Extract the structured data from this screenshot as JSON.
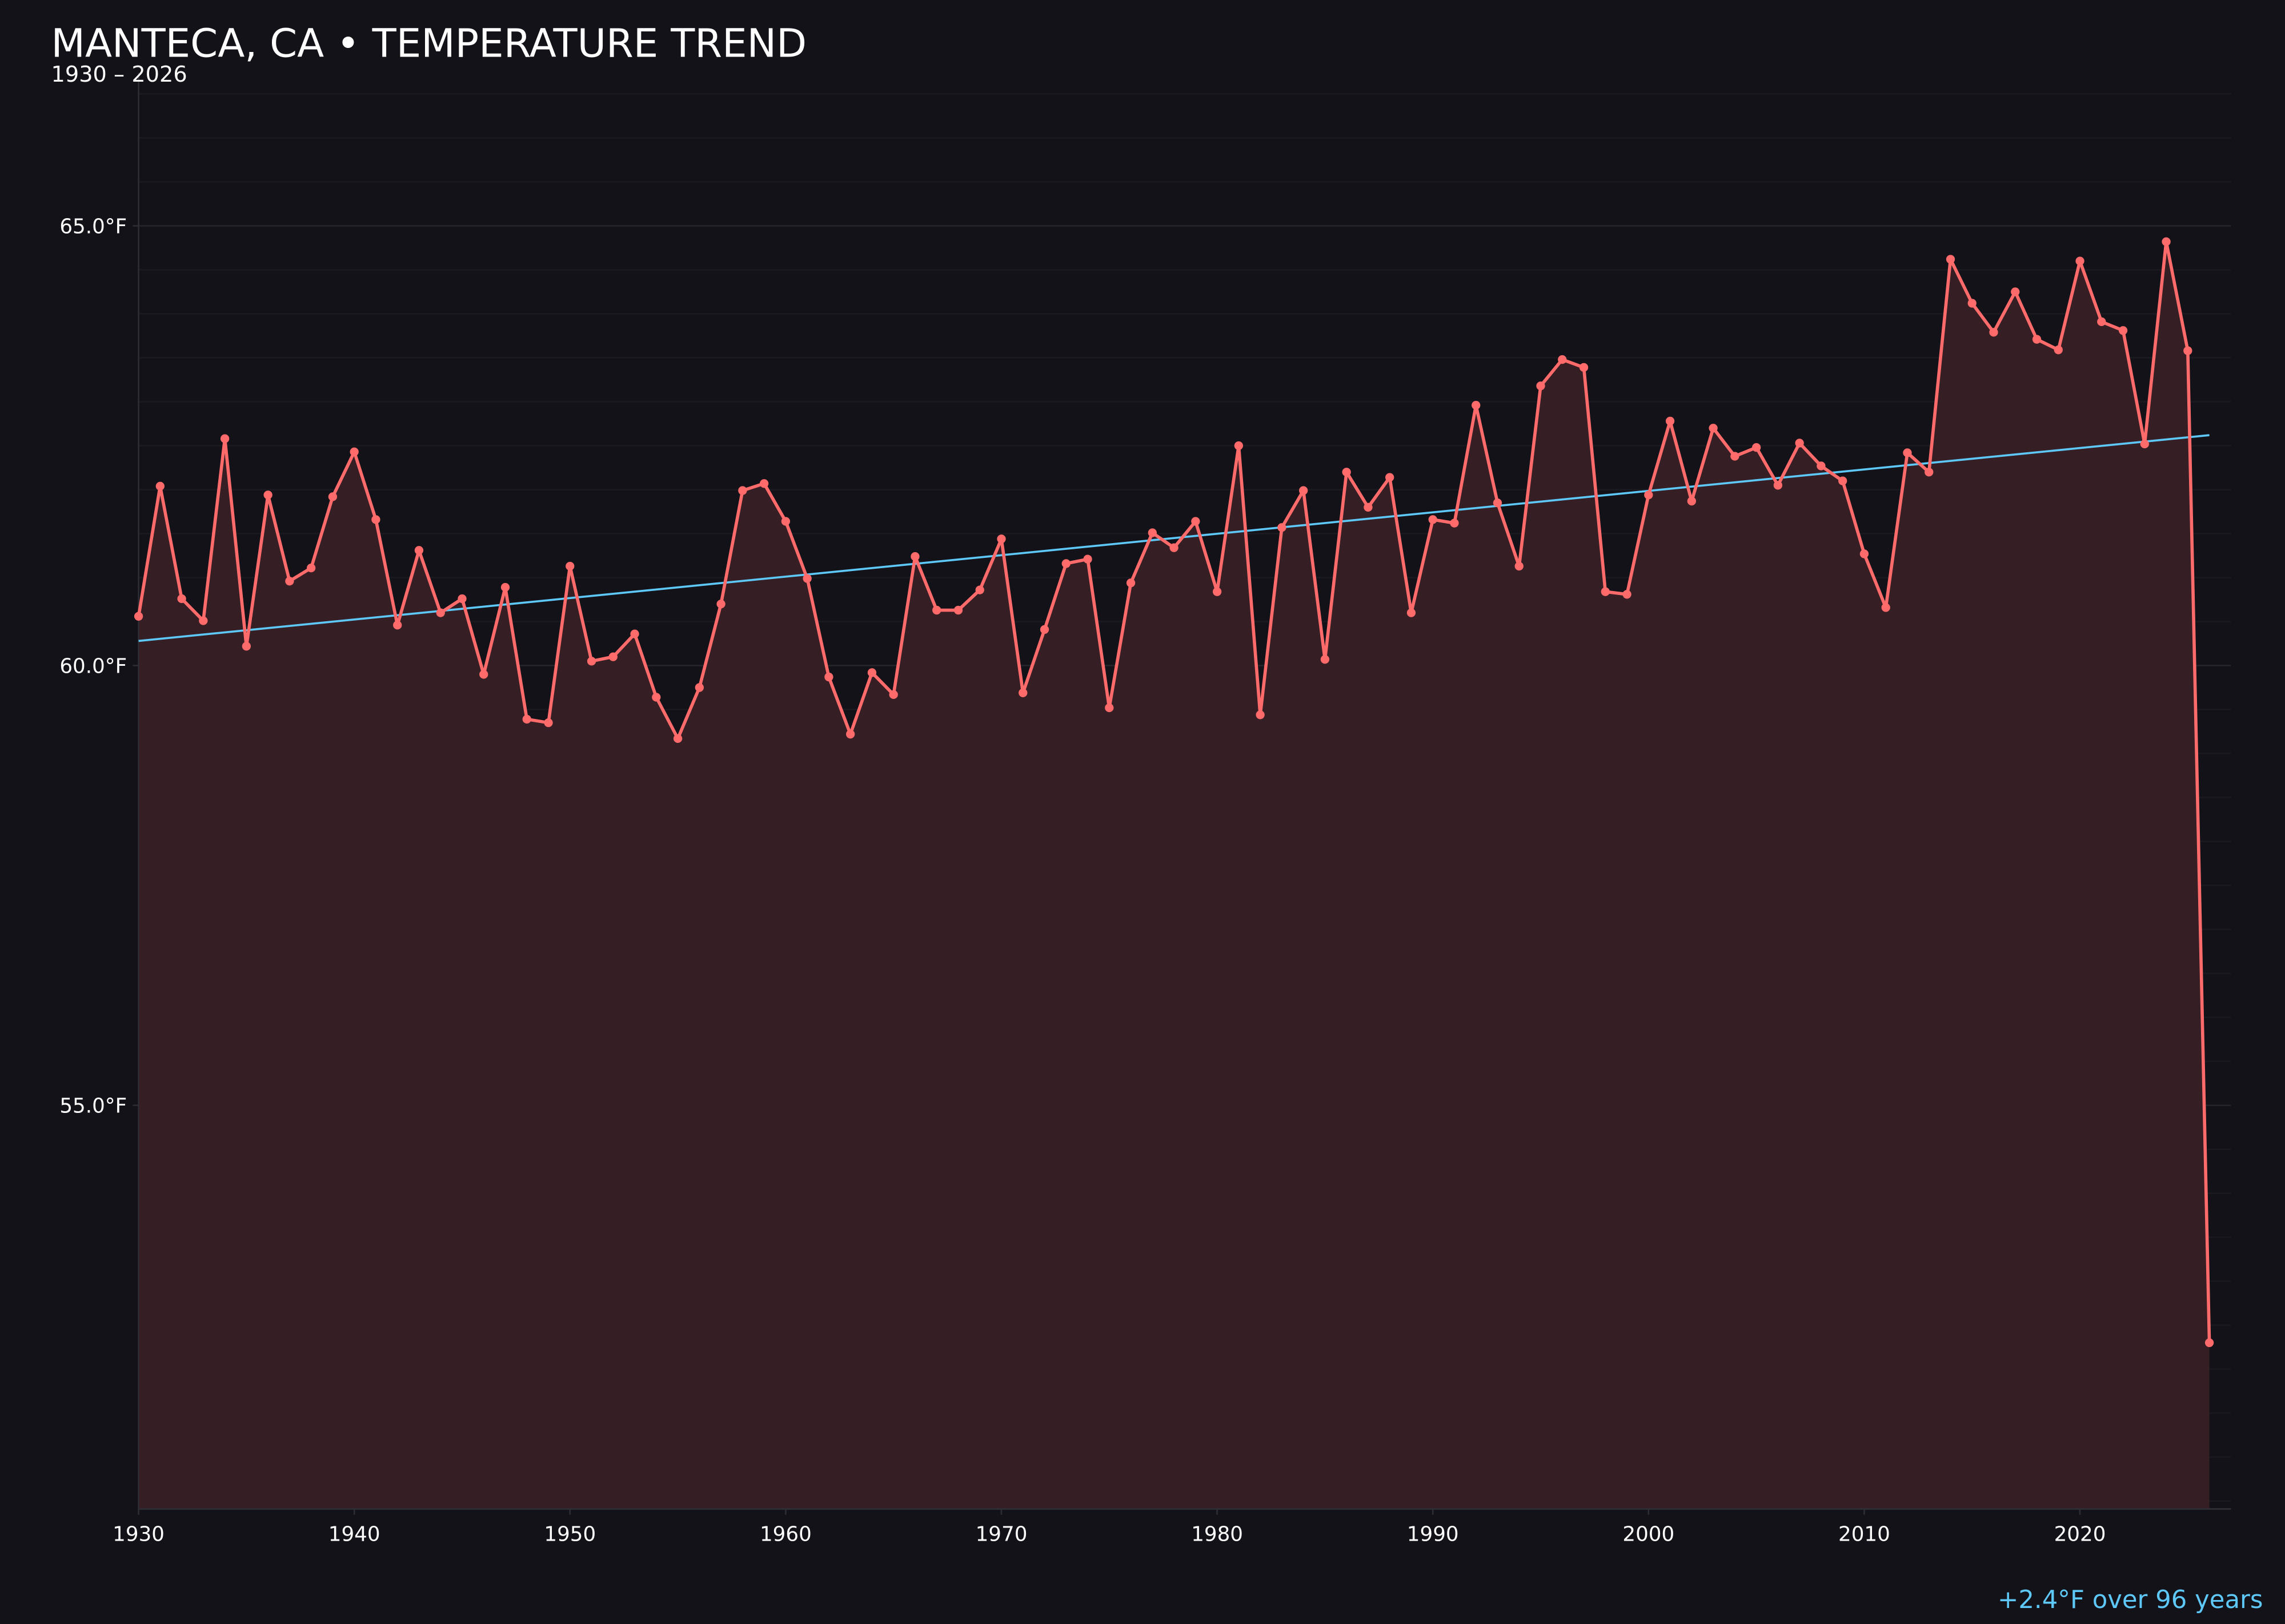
{
  "chart_data": {
    "type": "line",
    "title": "MANTECA, CA • TEMPERATURE TREND",
    "subtitle": "1930 – 2026",
    "annotation": "+2.4°F over 96 years",
    "xlabel": "",
    "ylabel": "",
    "xlim": [
      1930,
      2027
    ],
    "ylim": [
      50.41,
      66.74
    ],
    "x_ticks": [
      1930,
      1940,
      1950,
      1960,
      1970,
      1980,
      1990,
      2000,
      2010,
      2020
    ],
    "x_tick_labels": [
      "1930",
      "1940",
      "1950",
      "1960",
      "1970",
      "1980",
      "1990",
      "2000",
      "2010",
      "2020"
    ],
    "y_ticks": [
      55,
      60,
      65
    ],
    "y_tick_labels": [
      "55.0°F",
      "60.0°F",
      "65.0°F"
    ],
    "grid": true,
    "area_fill": true,
    "colors": {
      "background": "#131218",
      "line": "#ff6b6b",
      "fill": "#351f25",
      "trend": "#5ec8f8",
      "text": "#ffffff",
      "grid": "#26242b"
    },
    "x": [
      1930,
      1931,
      1932,
      1933,
      1934,
      1935,
      1936,
      1937,
      1938,
      1939,
      1940,
      1941,
      1942,
      1943,
      1944,
      1945,
      1946,
      1947,
      1948,
      1949,
      1950,
      1951,
      1952,
      1953,
      1954,
      1955,
      1956,
      1957,
      1958,
      1959,
      1960,
      1961,
      1962,
      1963,
      1964,
      1965,
      1966,
      1967,
      1968,
      1969,
      1970,
      1971,
      1972,
      1973,
      1974,
      1975,
      1976,
      1977,
      1978,
      1979,
      1980,
      1981,
      1982,
      1983,
      1984,
      1985,
      1986,
      1987,
      1988,
      1989,
      1990,
      1991,
      1992,
      1993,
      1994,
      1995,
      1996,
      1997,
      1998,
      1999,
      2000,
      2001,
      2002,
      2003,
      2004,
      2005,
      2006,
      2007,
      2008,
      2009,
      2010,
      2011,
      2012,
      2013,
      2014,
      2015,
      2016,
      2017,
      2018,
      2019,
      2020,
      2021,
      2022,
      2023,
      2024,
      2025,
      2026
    ],
    "values": [
      60.56,
      62.04,
      60.76,
      60.51,
      62.58,
      60.22,
      61.94,
      60.96,
      61.11,
      61.92,
      62.43,
      61.66,
      60.46,
      61.31,
      60.6,
      60.76,
      59.9,
      60.89,
      59.39,
      59.35,
      61.13,
      60.05,
      60.1,
      60.36,
      59.64,
      59.17,
      59.75,
      60.7,
      61.99,
      62.07,
      61.64,
      60.99,
      59.87,
      59.22,
      59.92,
      59.67,
      61.24,
      60.63,
      60.63,
      60.86,
      61.44,
      59.69,
      60.41,
      61.16,
      61.21,
      59.52,
      60.94,
      61.51,
      61.34,
      61.64,
      60.84,
      62.5,
      59.44,
      61.57,
      61.99,
      60.07,
      62.2,
      61.8,
      62.14,
      60.6,
      61.66,
      61.62,
      62.96,
      61.85,
      61.13,
      63.18,
      63.48,
      63.39,
      60.84,
      60.81,
      61.94,
      62.78,
      61.87,
      62.7,
      62.38,
      62.48,
      62.05,
      62.53,
      62.27,
      62.1,
      61.27,
      60.66,
      62.42,
      62.2,
      64.62,
      64.12,
      63.79,
      64.25,
      63.71,
      63.59,
      64.6,
      63.91,
      63.81,
      62.52,
      64.82,
      63.58,
      52.3
    ],
    "trend": {
      "x": [
        1930,
        2026
      ],
      "y": [
        60.28,
        62.62
      ]
    }
  }
}
